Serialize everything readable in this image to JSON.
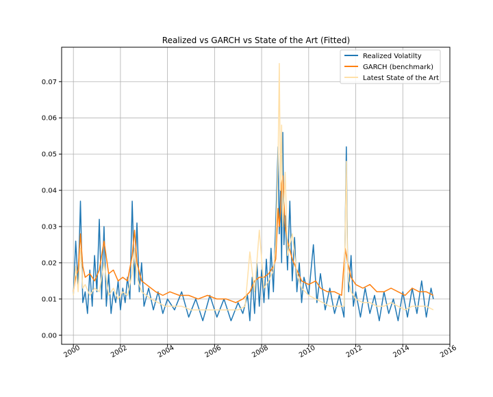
{
  "chart_data": {
    "type": "line",
    "title": "Realized vs GARCH vs State of the Art (Fitted)",
    "xlabel": "",
    "ylabel": "",
    "xlim": [
      1999.5,
      2016.0
    ],
    "ylim": [
      -0.0025,
      0.0795
    ],
    "x_ticks": [
      2000,
      2002,
      2004,
      2006,
      2008,
      2010,
      2012,
      2014,
      2016
    ],
    "x_tick_labels": [
      "2000",
      "2002",
      "2004",
      "2006",
      "2008",
      "2010",
      "2012",
      "2014",
      "2016"
    ],
    "y_ticks": [
      0.0,
      0.01,
      0.02,
      0.03,
      0.04,
      0.05,
      0.06,
      0.07
    ],
    "y_tick_labels": [
      "0.00",
      "0.01",
      "0.02",
      "0.03",
      "0.04",
      "0.05",
      "0.06",
      "0.07"
    ],
    "grid": true,
    "legend_position": "top-right",
    "series": [
      {
        "name": "Realized Volatilty",
        "color": "#1f77b4",
        "x": [
          2000.0,
          2000.1,
          2000.2,
          2000.3,
          2000.4,
          2000.5,
          2000.6,
          2000.7,
          2000.8,
          2000.9,
          2001.0,
          2001.1,
          2001.2,
          2001.3,
          2001.4,
          2001.5,
          2001.6,
          2001.7,
          2001.8,
          2001.9,
          2002.0,
          2002.1,
          2002.2,
          2002.3,
          2002.4,
          2002.5,
          2002.6,
          2002.7,
          2002.8,
          2002.9,
          2003.0,
          2003.2,
          2003.4,
          2003.6,
          2003.8,
          2004.0,
          2004.3,
          2004.6,
          2004.9,
          2005.2,
          2005.5,
          2005.8,
          2006.1,
          2006.4,
          2006.7,
          2007.0,
          2007.2,
          2007.4,
          2007.5,
          2007.6,
          2007.7,
          2007.8,
          2007.9,
          2008.0,
          2008.1,
          2008.2,
          2008.3,
          2008.4,
          2008.5,
          2008.6,
          2008.7,
          2008.75,
          2008.8,
          2008.85,
          2008.9,
          2008.95,
          2009.0,
          2009.1,
          2009.2,
          2009.3,
          2009.4,
          2009.5,
          2009.6,
          2009.7,
          2009.8,
          2010.0,
          2010.2,
          2010.35,
          2010.5,
          2010.7,
          2010.9,
          2011.1,
          2011.3,
          2011.5,
          2011.6,
          2011.65,
          2011.7,
          2011.8,
          2011.9,
          2012.0,
          2012.2,
          2012.4,
          2012.6,
          2012.8,
          2013.0,
          2013.2,
          2013.4,
          2013.6,
          2013.8,
          2014.0,
          2014.2,
          2014.4,
          2014.6,
          2014.8,
          2015.0,
          2015.2,
          2015.3
        ],
        "values": [
          0.011,
          0.026,
          0.014,
          0.037,
          0.009,
          0.012,
          0.006,
          0.018,
          0.008,
          0.022,
          0.012,
          0.032,
          0.01,
          0.03,
          0.008,
          0.017,
          0.006,
          0.012,
          0.009,
          0.015,
          0.007,
          0.013,
          0.009,
          0.016,
          0.01,
          0.037,
          0.014,
          0.031,
          0.012,
          0.02,
          0.008,
          0.013,
          0.007,
          0.012,
          0.006,
          0.01,
          0.007,
          0.012,
          0.005,
          0.01,
          0.004,
          0.011,
          0.005,
          0.01,
          0.004,
          0.009,
          0.006,
          0.011,
          0.004,
          0.016,
          0.006,
          0.02,
          0.008,
          0.018,
          0.009,
          0.021,
          0.01,
          0.024,
          0.012,
          0.031,
          0.052,
          0.028,
          0.04,
          0.02,
          0.056,
          0.025,
          0.033,
          0.018,
          0.037,
          0.015,
          0.027,
          0.012,
          0.02,
          0.009,
          0.016,
          0.011,
          0.025,
          0.009,
          0.017,
          0.007,
          0.013,
          0.006,
          0.011,
          0.005,
          0.052,
          0.022,
          0.012,
          0.022,
          0.008,
          0.012,
          0.005,
          0.013,
          0.006,
          0.011,
          0.004,
          0.012,
          0.006,
          0.01,
          0.004,
          0.012,
          0.005,
          0.013,
          0.006,
          0.015,
          0.005,
          0.013,
          0.01
        ]
      },
      {
        "name": "GARCH (benchmark)",
        "color": "#ff7f0e",
        "x": [
          2000.0,
          2000.1,
          2000.2,
          2000.3,
          2000.4,
          2000.5,
          2000.7,
          2000.9,
          2001.1,
          2001.3,
          2001.5,
          2001.7,
          2001.9,
          2002.1,
          2002.3,
          2002.5,
          2002.6,
          2002.7,
          2002.9,
          2003.1,
          2003.3,
          2003.5,
          2003.8,
          2004.1,
          2004.5,
          2004.9,
          2005.3,
          2005.7,
          2006.1,
          2006.5,
          2006.9,
          2007.2,
          2007.5,
          2007.7,
          2007.9,
          2008.1,
          2008.3,
          2008.5,
          2008.6,
          2008.7,
          2008.75,
          2008.8,
          2008.85,
          2008.9,
          2009.0,
          2009.1,
          2009.3,
          2009.5,
          2009.7,
          2010.0,
          2010.3,
          2010.5,
          2010.8,
          2011.1,
          2011.4,
          2011.55,
          2011.65,
          2011.7,
          2011.8,
          2012.0,
          2012.3,
          2012.6,
          2012.9,
          2013.2,
          2013.5,
          2013.8,
          2014.1,
          2014.4,
          2014.7,
          2015.0,
          2015.3
        ],
        "values": [
          0.012,
          0.016,
          0.018,
          0.028,
          0.019,
          0.016,
          0.017,
          0.015,
          0.018,
          0.026,
          0.017,
          0.018,
          0.015,
          0.016,
          0.015,
          0.022,
          0.029,
          0.02,
          0.015,
          0.014,
          0.013,
          0.012,
          0.011,
          0.012,
          0.011,
          0.011,
          0.01,
          0.011,
          0.01,
          0.01,
          0.009,
          0.01,
          0.012,
          0.015,
          0.016,
          0.016,
          0.017,
          0.019,
          0.021,
          0.035,
          0.03,
          0.034,
          0.042,
          0.044,
          0.03,
          0.026,
          0.021,
          0.018,
          0.015,
          0.014,
          0.015,
          0.013,
          0.012,
          0.012,
          0.011,
          0.024,
          0.02,
          0.019,
          0.016,
          0.014,
          0.013,
          0.014,
          0.012,
          0.012,
          0.013,
          0.012,
          0.011,
          0.013,
          0.012,
          0.012,
          0.011
        ]
      },
      {
        "name": "Latest State of the Art",
        "color": "#ffe0a8",
        "x": [
          2000.0,
          2000.1,
          2000.2,
          2000.3,
          2000.4,
          2000.5,
          2000.7,
          2000.9,
          2001.1,
          2001.3,
          2001.5,
          2001.7,
          2001.9,
          2002.1,
          2002.3,
          2002.5,
          2002.6,
          2002.7,
          2002.9,
          2003.1,
          2003.3,
          2003.6,
          2003.9,
          2004.2,
          2004.6,
          2005.0,
          2005.4,
          2005.8,
          2006.2,
          2006.6,
          2007.0,
          2007.3,
          2007.5,
          2007.7,
          2007.9,
          2008.1,
          2008.3,
          2008.5,
          2008.6,
          2008.7,
          2008.75,
          2008.8,
          2008.85,
          2008.9,
          2009.0,
          2009.1,
          2009.3,
          2009.5,
          2009.7,
          2010.0,
          2010.3,
          2010.6,
          2010.9,
          2011.2,
          2011.5,
          2011.6,
          2011.65,
          2011.7,
          2011.8,
          2012.0,
          2012.3,
          2012.6,
          2012.9,
          2013.2,
          2013.5,
          2013.8,
          2014.1,
          2014.4,
          2014.7,
          2015.0,
          2015.3
        ],
        "values": [
          0.011,
          0.019,
          0.012,
          0.024,
          0.013,
          0.014,
          0.011,
          0.013,
          0.012,
          0.02,
          0.011,
          0.013,
          0.01,
          0.012,
          0.011,
          0.017,
          0.024,
          0.016,
          0.012,
          0.011,
          0.01,
          0.009,
          0.008,
          0.008,
          0.008,
          0.007,
          0.007,
          0.007,
          0.007,
          0.007,
          0.007,
          0.008,
          0.023,
          0.012,
          0.029,
          0.013,
          0.015,
          0.018,
          0.025,
          0.048,
          0.075,
          0.04,
          0.058,
          0.03,
          0.045,
          0.022,
          0.028,
          0.017,
          0.013,
          0.011,
          0.01,
          0.009,
          0.008,
          0.008,
          0.008,
          0.048,
          0.02,
          0.015,
          0.012,
          0.01,
          0.009,
          0.009,
          0.008,
          0.008,
          0.009,
          0.008,
          0.007,
          0.008,
          0.008,
          0.008,
          0.007
        ]
      }
    ]
  }
}
